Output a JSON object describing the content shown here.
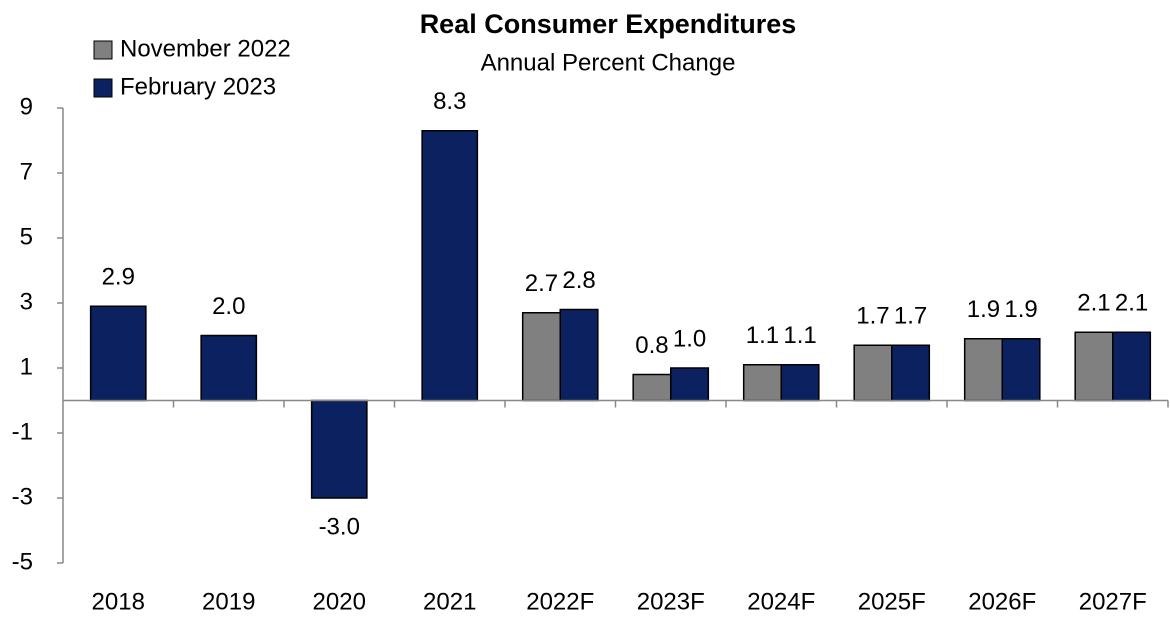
{
  "chart_data": {
    "type": "bar",
    "title": "Real Consumer Expenditures",
    "subtitle": "Annual Percent Change",
    "categories": [
      "2018",
      "2019",
      "2020",
      "2021",
      "2022F",
      "2023F",
      "2024F",
      "2025F",
      "2026F",
      "2027F"
    ],
    "series": [
      {
        "name": "November 2022",
        "color": "#808080",
        "values": [
          null,
          null,
          null,
          null,
          2.7,
          0.8,
          1.1,
          1.7,
          1.9,
          2.1
        ],
        "value_labels": [
          null,
          null,
          null,
          null,
          "2.7",
          "0.8",
          "1.1",
          "1.7",
          "1.9",
          "2.1"
        ]
      },
      {
        "name": "February 2023",
        "color": "#0b2160",
        "values": [
          2.9,
          2.0,
          -3.0,
          8.3,
          2.8,
          1.0,
          1.1,
          1.7,
          1.9,
          2.1
        ],
        "value_labels": [
          "2.9",
          "2.0",
          "-3.0",
          "8.3",
          "2.8",
          "1.0",
          "1.1",
          "1.7",
          "1.9",
          "2.1"
        ]
      }
    ],
    "ylim": [
      -5,
      9
    ],
    "yticks": [
      9,
      7,
      5,
      3,
      1,
      -1,
      -3,
      -5
    ],
    "grid": false,
    "legend": "top-left"
  }
}
